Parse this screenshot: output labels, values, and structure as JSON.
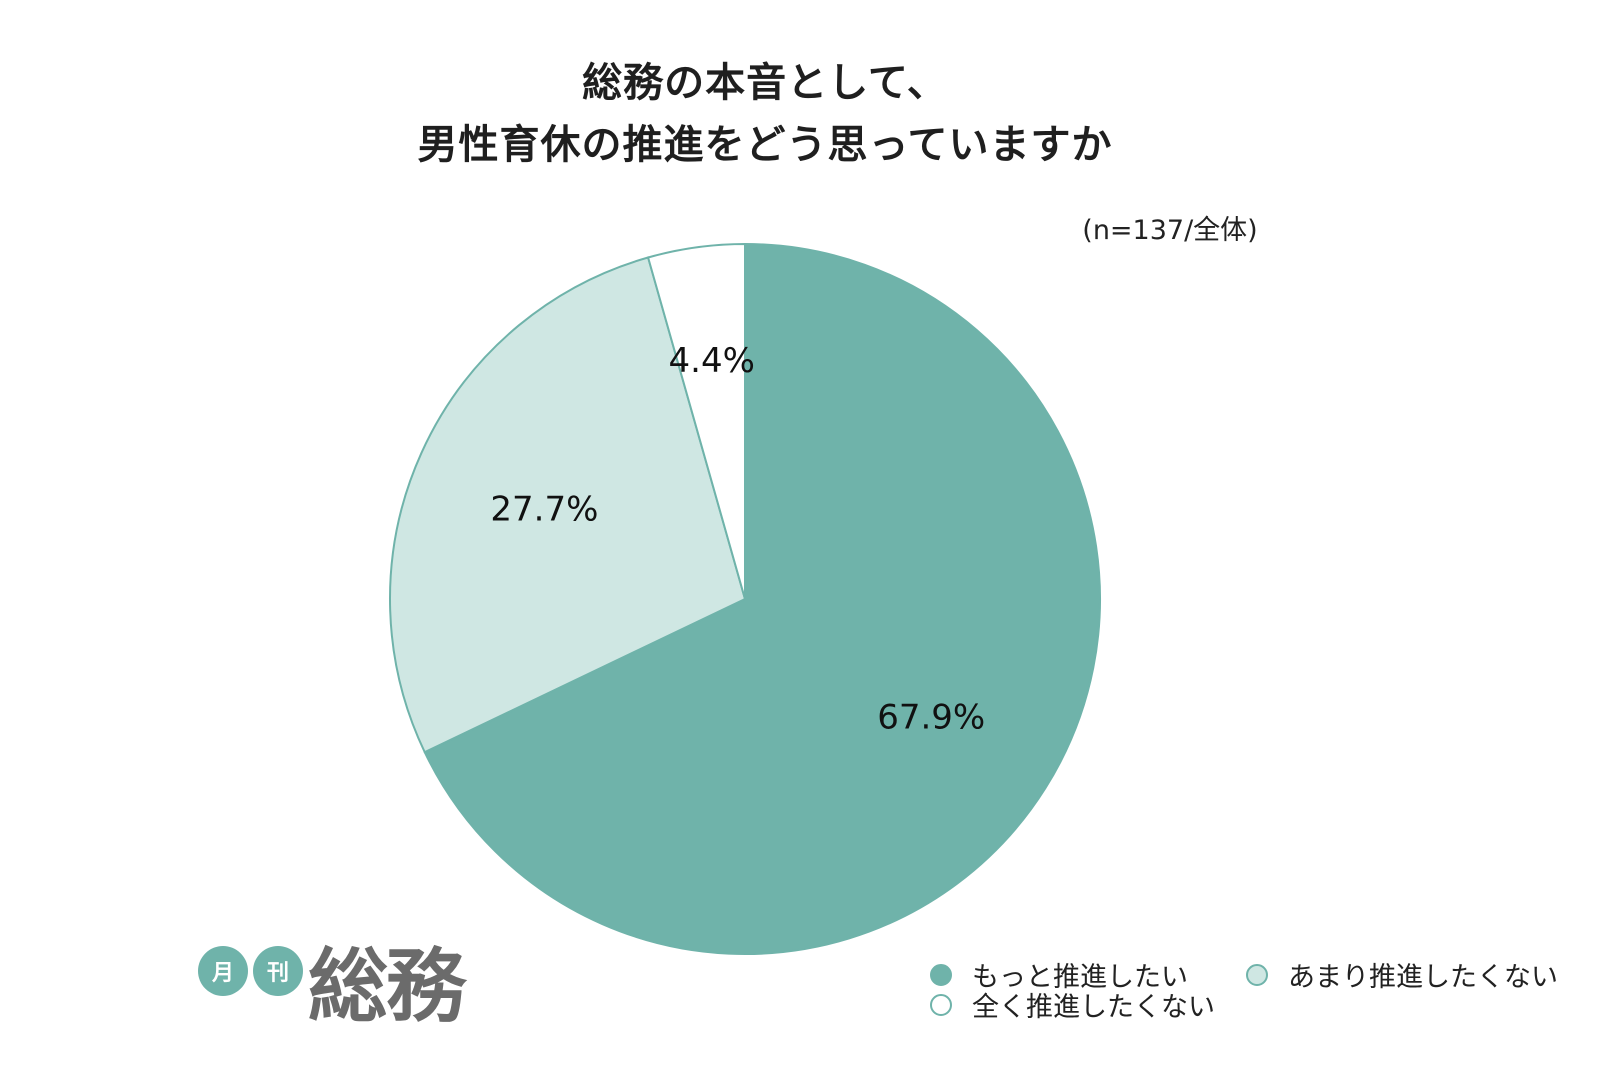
{
  "chart_data": {
    "type": "pie",
    "title_lines": [
      "総務の本音として、",
      "男性育休の推進をどう思っていますか"
    ],
    "sample_note": "(n=137/全体)",
    "slices": [
      {
        "name": "もっと推進したい",
        "value": 67.9,
        "label": "67.9%",
        "color": "#6fb3aa"
      },
      {
        "name": "あまり推進したくない",
        "value": 27.7,
        "label": "27.7%",
        "color": "#cfe7e3"
      },
      {
        "name": "全く推進したくない",
        "value": 4.4,
        "label": "4.4%",
        "color": "#ffffff"
      }
    ],
    "start": "12 o'clock",
    "direction": "clockwise",
    "stroke_color": "#6fb3aa",
    "legend_position": "bottom-right"
  },
  "brand": {
    "circle1": "月",
    "circle2": "刊",
    "name": "総務"
  }
}
